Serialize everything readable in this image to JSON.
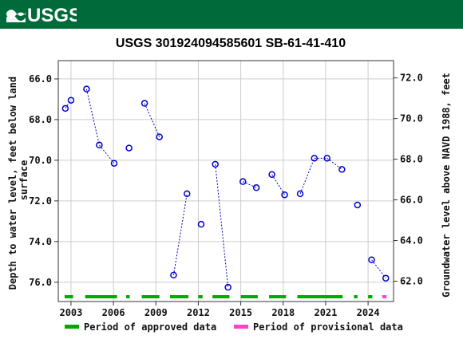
{
  "header": {
    "logo_text": "USGS",
    "brand_color": "#006a3a"
  },
  "chart_data": {
    "type": "scatter",
    "title": "USGS 301924094585601 SB-61-41-410",
    "ylabel_left": "Depth to water level, feet below land surface",
    "ylabel_left_lines": [
      "Depth to water level, feet below land",
      "surface"
    ],
    "ylabel_right": "Groundwater level above NAVD 1988, feet",
    "xlim": [
      2002.1,
      2025.8
    ],
    "ylim_left": [
      76.95,
      65.1
    ],
    "ylim_right": [
      61.0,
      72.85
    ],
    "x_ticks": [
      2003,
      2006,
      2009,
      2012,
      2015,
      2018,
      2021,
      2024
    ],
    "x_tick_labels": [
      "2003",
      "2006",
      "2009",
      "2012",
      "2015",
      "2018",
      "2021",
      "2024"
    ],
    "y_left_ticks": [
      66,
      68,
      70,
      72,
      74,
      76
    ],
    "y_left_tick_labels": [
      "66.0",
      "68.0",
      "70.0",
      "72.0",
      "74.0",
      "76.0"
    ],
    "y_right_ticks": [
      62,
      64,
      66,
      68,
      70,
      72
    ],
    "y_right_tick_labels": [
      "62.0",
      "64.0",
      "66.0",
      "68.0",
      "70.0",
      "72.0"
    ],
    "grid": true,
    "series": [
      {
        "points": [
          {
            "x": 2002.6,
            "y": 67.45
          },
          {
            "x": 2003.0,
            "y": 67.05
          },
          {
            "x": 2004.1,
            "y": 66.5
          },
          {
            "x": 2005.0,
            "y": 69.25
          },
          {
            "x": 2006.05,
            "y": 70.15
          },
          {
            "x": 2007.1,
            "y": 69.4
          },
          {
            "x": 2008.2,
            "y": 67.2
          },
          {
            "x": 2009.25,
            "y": 68.85
          },
          {
            "x": 2010.25,
            "y": 75.65
          },
          {
            "x": 2011.2,
            "y": 71.65
          },
          {
            "x": 2012.2,
            "y": 73.15
          },
          {
            "x": 2013.2,
            "y": 70.2
          },
          {
            "x": 2014.1,
            "y": 76.25
          },
          {
            "x": 2015.15,
            "y": 71.05
          },
          {
            "x": 2016.1,
            "y": 71.35
          },
          {
            "x": 2017.2,
            "y": 70.7
          },
          {
            "x": 2018.1,
            "y": 71.7
          },
          {
            "x": 2019.2,
            "y": 71.65
          },
          {
            "x": 2020.2,
            "y": 69.9
          },
          {
            "x": 2021.1,
            "y": 69.9
          },
          {
            "x": 2022.15,
            "y": 70.45
          },
          {
            "x": 2023.25,
            "y": 72.2
          },
          {
            "x": 2024.25,
            "y": 74.9
          },
          {
            "x": 2025.25,
            "y": 75.8
          }
        ],
        "connected_segments": [
          [
            0,
            1
          ],
          [
            2,
            3
          ],
          [
            3,
            4
          ],
          [
            6,
            7
          ],
          [
            8,
            9
          ],
          [
            11,
            12
          ],
          [
            13,
            14
          ],
          [
            15,
            16
          ],
          [
            17,
            18
          ],
          [
            18,
            19
          ],
          [
            19,
            20
          ],
          [
            22,
            23
          ]
        ]
      }
    ],
    "approved_periods": [
      [
        2002.55,
        2003.15
      ],
      [
        2004.0,
        2006.25
      ],
      [
        2006.9,
        2007.15
      ],
      [
        2008.0,
        2009.25
      ],
      [
        2010.0,
        2011.3
      ],
      [
        2012.0,
        2012.3
      ],
      [
        2013.0,
        2014.2
      ],
      [
        2015.0,
        2016.2
      ],
      [
        2017.0,
        2018.2
      ],
      [
        2019.0,
        2022.2
      ],
      [
        2023.0,
        2023.25
      ],
      [
        2024.0,
        2024.3
      ]
    ],
    "provisional_periods": [
      [
        2025.0,
        2025.3
      ]
    ],
    "legend": {
      "placement": "bottom",
      "approved_label": "Period of approved data",
      "provisional_label": "Period of provisional data"
    },
    "colors": {
      "marker": "#0000cc",
      "line": "#0000cc",
      "approved": "#00aa00",
      "provisional": "#ff44cc",
      "grid": "#cccccc"
    }
  }
}
